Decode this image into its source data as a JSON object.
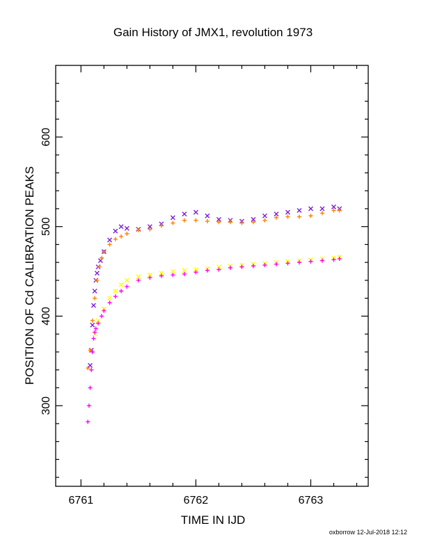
{
  "chart_data": {
    "type": "scatter",
    "title": "Gain History of JMX1, revolution 1973",
    "xlabel": "TIME IN IJD",
    "ylabel": "POSITION OF Cd CALIBRATION PEAKS",
    "xlim": [
      6760.78,
      6763.5
    ],
    "ylim": [
      210,
      680
    ],
    "x_major_ticks": [
      6761,
      6762,
      6763
    ],
    "x_minor_ticks": [
      6761.2,
      6761.4,
      6761.6,
      6761.8,
      6762.2,
      6762.4,
      6762.6,
      6762.8,
      6763.2,
      6763.4
    ],
    "y_major_ticks": [
      300,
      400,
      500,
      600
    ],
    "y_minor_ticks": [
      220,
      240,
      260,
      280,
      320,
      340,
      360,
      380,
      420,
      440,
      460,
      480,
      520,
      540,
      560,
      580,
      620,
      640,
      660
    ],
    "grid": false,
    "legend": "none",
    "series": [
      {
        "marker": "x",
        "color": "#7b1fd8",
        "x": [
          6761.08,
          6761.09,
          6761.1,
          6761.11,
          6761.12,
          6761.13,
          6761.14,
          6761.15,
          6761.17,
          6761.2,
          6761.25,
          6761.3,
          6761.35,
          6761.4,
          6761.5,
          6761.6,
          6761.7,
          6761.8,
          6761.9,
          6762.0,
          6762.1,
          6762.2,
          6762.3,
          6762.4,
          6762.5,
          6762.6,
          6762.7,
          6762.8,
          6762.9,
          6763.0,
          6763.1,
          6763.2,
          6763.25
        ],
        "y": [
          345,
          362,
          390,
          412,
          428,
          440,
          448,
          455,
          462,
          472,
          485,
          495,
          500,
          498,
          497,
          500,
          503,
          510,
          514,
          516,
          512,
          508,
          507,
          506,
          508,
          512,
          514,
          516,
          518,
          520,
          520,
          522,
          520
        ]
      },
      {
        "marker": "x",
        "color": "#ffff00",
        "x": [
          6761.12,
          6761.15,
          6761.2,
          6761.25,
          6761.3,
          6761.35,
          6761.4,
          6761.5,
          6761.6,
          6761.7,
          6761.8,
          6761.9,
          6762.0,
          6762.1,
          6762.2,
          6762.3,
          6762.4,
          6762.5,
          6762.6,
          6762.7,
          6762.8,
          6762.9,
          6763.0,
          6763.1,
          6763.2,
          6763.25
        ],
        "y": [
          380,
          395,
          408,
          420,
          428,
          435,
          440,
          444,
          446,
          448,
          450,
          451,
          452,
          453,
          455,
          456,
          457,
          458,
          459,
          460,
          461,
          462,
          463,
          464,
          465,
          466
        ]
      },
      {
        "marker": "+",
        "color": "#ff7f00",
        "x": [
          6761.06,
          6761.08,
          6761.1,
          6761.12,
          6761.14,
          6761.16,
          6761.18,
          6761.2,
          6761.25,
          6761.3,
          6761.35,
          6761.4,
          6761.5,
          6761.6,
          6761.7,
          6761.8,
          6761.9,
          6762.0,
          6762.1,
          6762.2,
          6762.3,
          6762.4,
          6762.5,
          6762.6,
          6762.7,
          6762.8,
          6762.9,
          6763.0,
          6763.1,
          6763.2,
          6763.25
        ],
        "y": [
          342,
          362,
          395,
          420,
          440,
          455,
          465,
          472,
          480,
          486,
          489,
          492,
          496,
          497,
          501,
          504,
          507,
          507,
          506,
          505,
          505,
          504,
          505,
          507,
          510,
          511,
          511,
          512,
          515,
          518,
          518
        ]
      },
      {
        "marker": "+",
        "color": "#ff00ff",
        "x": [
          6761.06,
          6761.07,
          6761.08,
          6761.09,
          6761.1,
          6761.11,
          6761.12,
          6761.13,
          6761.15,
          6761.18,
          6761.2,
          6761.25,
          6761.3,
          6761.35,
          6761.4,
          6761.5,
          6761.6,
          6761.7,
          6761.8,
          6761.9,
          6762.0,
          6762.1,
          6762.2,
          6762.3,
          6762.4,
          6762.5,
          6762.6,
          6762.7,
          6762.8,
          6762.9,
          6763.0,
          6763.1,
          6763.2,
          6763.25
        ],
        "y": [
          282,
          300,
          320,
          340,
          360,
          375,
          382,
          386,
          392,
          400,
          406,
          415,
          422,
          428,
          433,
          440,
          443,
          445,
          446,
          447,
          449,
          451,
          452,
          454,
          455,
          456,
          457,
          458,
          459,
          460,
          461,
          462,
          463,
          464
        ]
      }
    ]
  },
  "footer": {
    "credit": "oxborrow 12-Jul-2018 12:12"
  }
}
